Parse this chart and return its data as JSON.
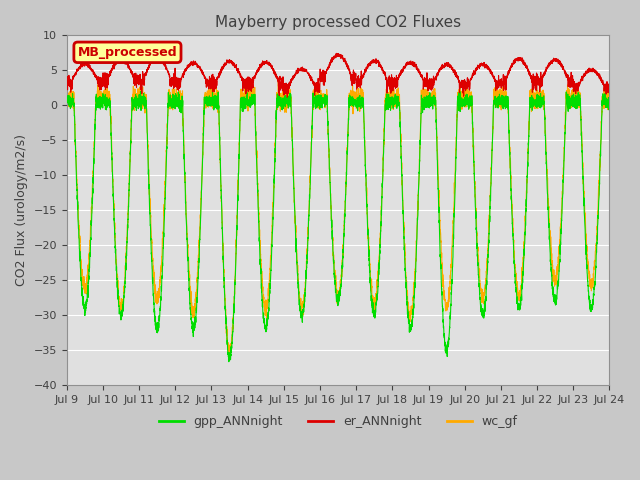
{
  "title": "Mayberry processed CO2 Fluxes",
  "ylabel": "CO2 Flux (urology/m2/s)",
  "ylim": [
    -40,
    10
  ],
  "yticks": [
    10,
    5,
    0,
    -5,
    -10,
    -15,
    -20,
    -25,
    -30,
    -35,
    -40
  ],
  "fig_facecolor": "#c8c8c8",
  "ax_facecolor": "#e0e0e0",
  "legend_box_label": "MB_processed",
  "legend_box_color": "#ffff99",
  "legend_box_edge": "#cc0000",
  "legend_box_text": "#cc0000",
  "line_colors": {
    "gpp": "#00dd00",
    "er": "#dd0000",
    "wc": "#ffaa00"
  },
  "n_days": 15,
  "start_day": 9,
  "points_per_day": 288,
  "grid_color": "#ffffff",
  "tick_label_color": "#404040"
}
